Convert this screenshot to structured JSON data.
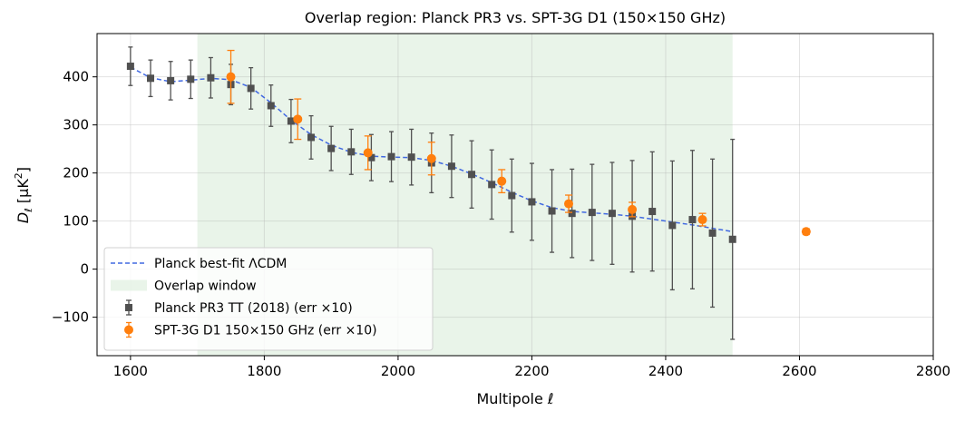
{
  "chart_data": {
    "type": "scatter",
    "title": "Overlap region: Planck PR3 vs. SPT-3G D1 (150×150 GHz)",
    "xlabel": "Multipole  ℓ",
    "ylabel": "D_ℓ [μK²]",
    "ylabel_main": "D",
    "ylabel_sub": "ℓ",
    "ylabel_unit": " [μK",
    "ylabel_sup": "2",
    "ylabel_close": "]",
    "xlim": [
      1550,
      2800
    ],
    "ylim": [
      -180,
      490
    ],
    "xticks": [
      1600,
      1800,
      2000,
      2200,
      2400,
      2600,
      2800
    ],
    "xtick_labels": [
      "1600",
      "1800",
      "2000",
      "2200",
      "2400",
      "2600",
      "2800"
    ],
    "yticks": [
      -100,
      0,
      100,
      200,
      300,
      400
    ],
    "ytick_labels": [
      "−100",
      "0",
      "100",
      "200",
      "300",
      "400"
    ],
    "grid": true,
    "legend_position": "lower-left",
    "overlap_window": {
      "label": "Overlap window",
      "x_range": [
        1700,
        2500
      ],
      "color": "#d4ead4"
    },
    "series": [
      {
        "name": "Planck best-fit ΛCDM",
        "kind": "line",
        "style": "dashed",
        "color": "#4169e1",
        "x": [
          1600,
          1630,
          1660,
          1690,
          1720,
          1750,
          1780,
          1810,
          1840,
          1870,
          1900,
          1930,
          1960,
          1990,
          2020,
          2050,
          2080,
          2110,
          2140,
          2170,
          2200,
          2230,
          2260,
          2290,
          2320,
          2350,
          2380,
          2410,
          2440,
          2470,
          2500
        ],
        "y": [
          420,
          398,
          390,
          393,
          397,
          394,
          378,
          346,
          310,
          280,
          258,
          243,
          235,
          233,
          232,
          226,
          214,
          198,
          180,
          160,
          142,
          128,
          120,
          117,
          114,
          110,
          104,
          98,
          92,
          85,
          78
        ]
      },
      {
        "name": "Planck PR3 TT (2018)  (err ×10)",
        "kind": "errorbar",
        "marker": "square",
        "color": "#505050",
        "x": [
          1600,
          1630,
          1660,
          1690,
          1720,
          1750,
          1780,
          1810,
          1840,
          1870,
          1900,
          1930,
          1960,
          1990,
          2020,
          2050,
          2080,
          2110,
          2140,
          2170,
          2200,
          2230,
          2260,
          2290,
          2320,
          2350,
          2380,
          2410,
          2440,
          2470,
          2500
        ],
        "y": [
          422,
          397,
          392,
          395,
          398,
          384,
          376,
          340,
          308,
          274,
          251,
          244,
          232,
          234,
          233,
          221,
          214,
          197,
          176,
          153,
          140,
          121,
          116,
          118,
          116,
          110,
          120,
          91,
          103,
          75,
          62
        ],
        "err": [
          40,
          38,
          40,
          40,
          42,
          42,
          43,
          43,
          45,
          45,
          46,
          47,
          48,
          52,
          58,
          62,
          65,
          70,
          72,
          76,
          80,
          86,
          92,
          100,
          106,
          116,
          124,
          134,
          144,
          154,
          208
        ]
      },
      {
        "name": "SPT-3G D1  150×150 GHz  (err ×10)",
        "kind": "errorbar",
        "marker": "circle",
        "color": "#ff7f0e",
        "x": [
          1750,
          1850,
          1955,
          2050,
          2155,
          2255,
          2350,
          2455,
          2610
        ],
        "y": [
          400,
          312,
          242,
          230,
          183,
          136,
          124,
          103,
          78
        ],
        "err": [
          55,
          42,
          35,
          34,
          24,
          18,
          15,
          13,
          6
        ]
      }
    ],
    "legend": [
      {
        "label": "Planck best-fit ΛCDM",
        "type": "line"
      },
      {
        "label": "Overlap window",
        "type": "patch"
      },
      {
        "label": "Planck PR3 TT (2018)  (err ×10)",
        "type": "square-errorbar"
      },
      {
        "label": "SPT-3G D1  150×150 GHz  (err ×10)",
        "type": "circle-errorbar"
      }
    ]
  }
}
